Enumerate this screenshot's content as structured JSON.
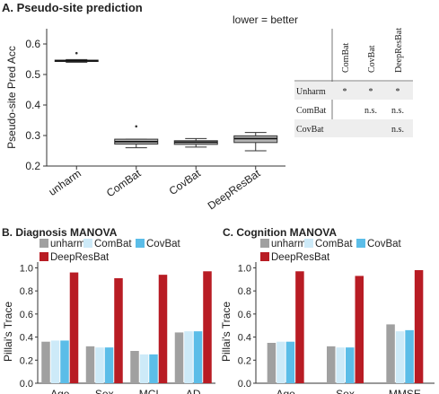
{
  "panels": {
    "a_title": "A. Pseudo-site prediction",
    "b_title": "B. Diagnosis MANOVA",
    "c_title": "C. Cognition MANOVA",
    "note": "lower = better"
  },
  "colors": {
    "unharm": "#a0a0a0",
    "ComBat": "#cdeaf8",
    "CovBat": "#5bbde8",
    "DeepResBat": "#b81c24",
    "box_fill": "#b3b3b3",
    "table_shade": "#eeeeee"
  },
  "table": {
    "columns": [
      "ComBat",
      "CovBat",
      "DeepResBat"
    ],
    "rows": [
      {
        "label": "Unharm",
        "cells": [
          "*",
          "*",
          "*"
        ]
      },
      {
        "label": "ComBat",
        "cells": [
          "",
          "n.s.",
          "n.s."
        ]
      },
      {
        "label": "CovBat",
        "cells": [
          "",
          "",
          "n.s."
        ]
      }
    ]
  },
  "chart_data": [
    {
      "type": "box",
      "title": "A. Pseudo-site prediction",
      "ylabel": "Pseudo-site Pred Acc",
      "categories": [
        "unharm",
        "ComBat",
        "CovBat",
        "DeepResBat"
      ],
      "ylim": [
        0.2,
        0.65
      ],
      "yticks": [
        0.2,
        0.3,
        0.4,
        0.5,
        0.6
      ],
      "boxes": [
        {
          "whisker_low": 0.54,
          "q1": 0.543,
          "median": 0.545,
          "q3": 0.547,
          "whisker_high": 0.549,
          "outliers": [
            0.57
          ]
        },
        {
          "whisker_low": 0.26,
          "q1": 0.272,
          "median": 0.28,
          "q3": 0.288,
          "whisker_high": 0.288,
          "outliers": [
            0.33
          ]
        },
        {
          "whisker_low": 0.262,
          "q1": 0.271,
          "median": 0.278,
          "q3": 0.283,
          "whisker_high": 0.29,
          "outliers": []
        },
        {
          "whisker_low": 0.25,
          "q1": 0.277,
          "median": 0.29,
          "q3": 0.299,
          "whisker_high": 0.31,
          "outliers": []
        }
      ],
      "grid": false
    },
    {
      "type": "bar",
      "title": "B. Diagnosis MANOVA",
      "ylabel": "Pillai's Trace",
      "categories": [
        "Age",
        "Sex",
        "MCI",
        "AD"
      ],
      "ylim": [
        0,
        1.05
      ],
      "yticks": [
        0.0,
        0.2,
        0.4,
        0.6,
        0.8,
        1.0
      ],
      "series": [
        {
          "name": "unharm",
          "values": [
            0.36,
            0.32,
            0.28,
            0.44
          ]
        },
        {
          "name": "ComBat",
          "values": [
            0.37,
            0.31,
            0.25,
            0.45
          ]
        },
        {
          "name": "CovBat",
          "values": [
            0.37,
            0.31,
            0.25,
            0.45
          ]
        },
        {
          "name": "DeepResBat",
          "values": [
            0.96,
            0.91,
            0.94,
            0.97
          ]
        }
      ],
      "legend": "top-left"
    },
    {
      "type": "bar",
      "title": "C. Cognition MANOVA",
      "ylabel": "Pillai's Trace",
      "categories": [
        "Age",
        "Sex",
        "MMSE"
      ],
      "ylim": [
        0,
        1.05
      ],
      "yticks": [
        0.0,
        0.2,
        0.4,
        0.6,
        0.8,
        1.0
      ],
      "series": [
        {
          "name": "unharm",
          "values": [
            0.35,
            0.32,
            0.51
          ]
        },
        {
          "name": "ComBat",
          "values": [
            0.36,
            0.31,
            0.45
          ]
        },
        {
          "name": "CovBat",
          "values": [
            0.36,
            0.31,
            0.46
          ]
        },
        {
          "name": "DeepResBat",
          "values": [
            0.97,
            0.93,
            0.98
          ]
        }
      ],
      "legend": "top-left"
    }
  ]
}
